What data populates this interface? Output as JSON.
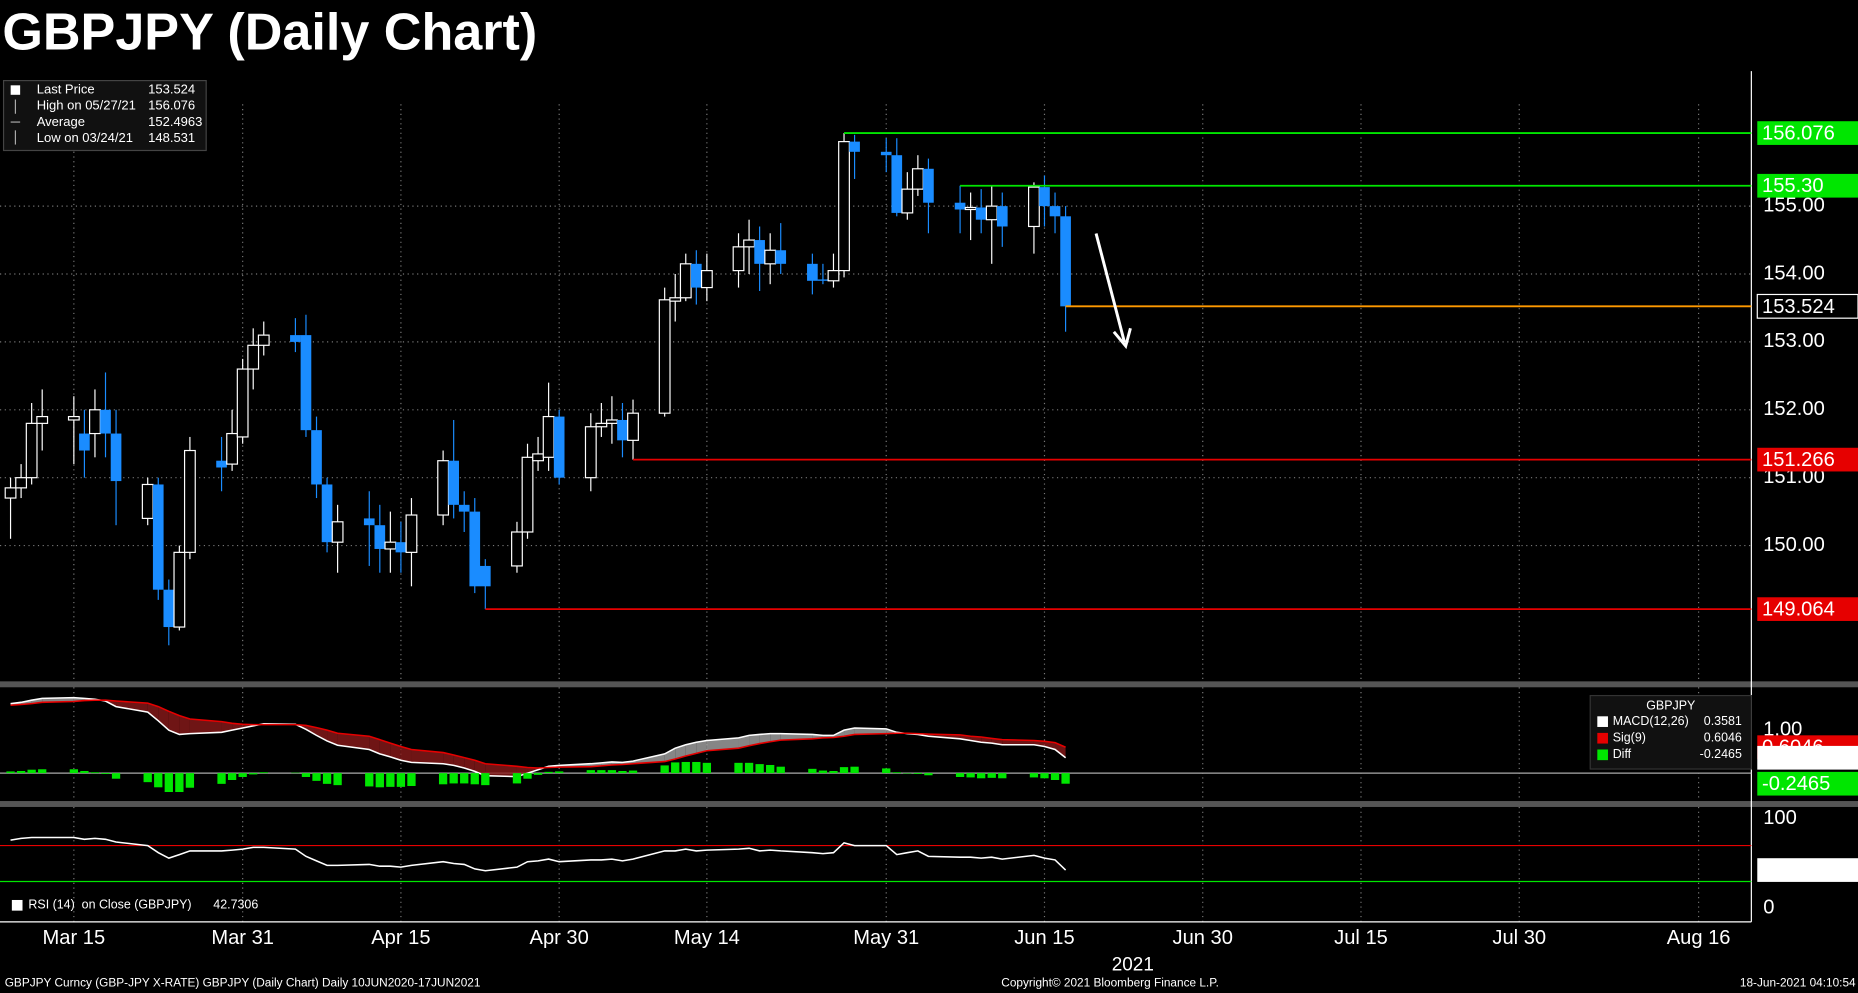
{
  "chart_data": [
    {
      "type": "candlestick",
      "title": "GBPJPY (Daily Chart)",
      "x": [
        "2021-03-09",
        "2021-03-10",
        "2021-03-11",
        "2021-03-12",
        "2021-03-15",
        "2021-03-16",
        "2021-03-17",
        "2021-03-18",
        "2021-03-19",
        "2021-03-22",
        "2021-03-23",
        "2021-03-24",
        "2021-03-25",
        "2021-03-26",
        "2021-03-29",
        "2021-03-30",
        "2021-03-31",
        "2021-04-01",
        "2021-04-02",
        "2021-04-05",
        "2021-04-06",
        "2021-04-07",
        "2021-04-08",
        "2021-04-09",
        "2021-04-12",
        "2021-04-13",
        "2021-04-14",
        "2021-04-15",
        "2021-04-16",
        "2021-04-19",
        "2021-04-20",
        "2021-04-21",
        "2021-04-22",
        "2021-04-23",
        "2021-04-26",
        "2021-04-27",
        "2021-04-28",
        "2021-04-29",
        "2021-04-30",
        "2021-05-03",
        "2021-05-04",
        "2021-05-05",
        "2021-05-06",
        "2021-05-07",
        "2021-05-10",
        "2021-05-11",
        "2021-05-12",
        "2021-05-13",
        "2021-05-14",
        "2021-05-17",
        "2021-05-18",
        "2021-05-19",
        "2021-05-20",
        "2021-05-21",
        "2021-05-24",
        "2021-05-25",
        "2021-05-26",
        "2021-05-27",
        "2021-05-28",
        "2021-05-31",
        "2021-06-01",
        "2021-06-02",
        "2021-06-03",
        "2021-06-04",
        "2021-06-07",
        "2021-06-08",
        "2021-06-09",
        "2021-06-10",
        "2021-06-11",
        "2021-06-14",
        "2021-06-15",
        "2021-06-16",
        "2021-06-17"
      ],
      "open": [
        150.7,
        150.85,
        151.0,
        151.8,
        151.85,
        151.65,
        151.65,
        152.0,
        151.65,
        150.4,
        150.9,
        149.35,
        148.8,
        149.9,
        151.25,
        151.2,
        151.6,
        152.6,
        152.95,
        153.1,
        153.1,
        151.7,
        150.9,
        150.05,
        150.4,
        150.3,
        149.95,
        150.05,
        149.9,
        150.45,
        151.25,
        150.6,
        150.5,
        149.7,
        149.7,
        150.2,
        151.25,
        151.3,
        151.9,
        151.0,
        151.75,
        151.8,
        151.85,
        151.55,
        151.95,
        153.6,
        153.65,
        154.15,
        153.8,
        154.05,
        154.4,
        154.5,
        154.15,
        154.35,
        154.15,
        153.92,
        153.9,
        154.05,
        155.95,
        155.8,
        155.75,
        154.9,
        155.25,
        155.55,
        155.05,
        154.95,
        154.98,
        154.8,
        155.0,
        154.7,
        155.28,
        155.0,
        154.85
      ],
      "high": [
        151.0,
        151.2,
        152.1,
        152.3,
        152.2,
        152.0,
        152.3,
        152.55,
        152.0,
        151.0,
        151.0,
        149.5,
        150.0,
        151.6,
        151.6,
        152.0,
        152.75,
        153.2,
        153.3,
        153.35,
        153.4,
        151.9,
        151.0,
        150.6,
        150.8,
        150.6,
        150.5,
        150.35,
        150.7,
        151.4,
        151.85,
        150.8,
        150.7,
        149.8,
        150.35,
        151.5,
        151.6,
        152.4,
        152.0,
        151.95,
        152.1,
        152.2,
        152.1,
        152.15,
        153.8,
        154.0,
        154.3,
        154.35,
        154.3,
        154.6,
        154.8,
        154.7,
        154.6,
        154.75,
        154.3,
        154.15,
        154.3,
        156.076,
        156.05,
        156.0,
        156.0,
        155.5,
        155.75,
        155.7,
        155.3,
        155.2,
        155.25,
        155.3,
        155.2,
        155.35,
        155.45,
        155.2,
        155.0
      ],
      "low": [
        150.1,
        150.7,
        150.9,
        151.4,
        151.2,
        151.0,
        151.3,
        151.3,
        150.3,
        150.3,
        149.2,
        148.531,
        148.75,
        149.8,
        150.8,
        151.1,
        151.5,
        152.3,
        152.8,
        152.85,
        151.6,
        150.7,
        149.9,
        149.6,
        149.7,
        149.6,
        149.6,
        149.6,
        149.4,
        150.3,
        150.4,
        150.2,
        149.3,
        149.064,
        149.6,
        150.1,
        151.1,
        151.1,
        150.9,
        150.8,
        151.6,
        151.5,
        151.3,
        151.266,
        151.9,
        153.3,
        153.6,
        153.55,
        153.6,
        153.8,
        154.0,
        153.75,
        153.85,
        154.0,
        153.7,
        153.85,
        153.8,
        153.95,
        155.4,
        155.5,
        154.85,
        154.8,
        155.15,
        154.6,
        154.6,
        154.5,
        154.6,
        154.15,
        154.4,
        154.3,
        154.7,
        154.6,
        153.15
      ],
      "close": [
        150.85,
        151.0,
        151.8,
        151.9,
        151.9,
        151.4,
        152.0,
        151.65,
        150.95,
        150.9,
        149.35,
        148.8,
        149.9,
        151.4,
        151.15,
        151.65,
        152.6,
        152.95,
        153.1,
        153.0,
        151.7,
        150.9,
        150.05,
        150.35,
        150.3,
        149.95,
        150.05,
        149.9,
        150.45,
        151.25,
        150.6,
        150.5,
        149.4,
        149.4,
        150.2,
        151.3,
        151.35,
        151.9,
        151.0,
        151.75,
        151.8,
        151.85,
        151.55,
        151.95,
        153.62,
        153.65,
        154.15,
        153.8,
        154.05,
        154.4,
        154.5,
        154.15,
        154.35,
        154.15,
        153.9,
        153.9,
        154.05,
        155.95,
        155.8,
        155.75,
        154.9,
        155.25,
        155.55,
        155.05,
        154.95,
        154.98,
        154.8,
        155.0,
        154.7,
        155.28,
        155.0,
        154.85,
        153.524
      ],
      "up_color": "#ffffff",
      "down_color": "#1a8cff",
      "xlim": [
        "2021-03-08",
        "2021-08-21"
      ],
      "xticks": [
        {
          "value": "2021-03-15",
          "label": "Mar 15"
        },
        {
          "value": "2021-03-31",
          "label": "Mar 31"
        },
        {
          "value": "2021-04-15",
          "label": "Apr 15"
        },
        {
          "value": "2021-04-30",
          "label": "Apr 30"
        },
        {
          "value": "2021-05-14",
          "label": "May 14"
        },
        {
          "value": "2021-05-31",
          "label": "May 31"
        },
        {
          "value": "2021-06-15",
          "label": "Jun 15"
        },
        {
          "value": "2021-06-30",
          "label": "Jun 30"
        },
        {
          "value": "2021-07-15",
          "label": "Jul 15"
        },
        {
          "value": "2021-07-30",
          "label": "Jul 30"
        },
        {
          "value": "2021-08-16",
          "label": "Aug 16"
        }
      ],
      "xlabel": "2021",
      "ylim": [
        148,
        156.5
      ],
      "yticks": [
        {
          "value": 150,
          "label": "150.00"
        },
        {
          "value": 151,
          "label": "151.00"
        },
        {
          "value": 152,
          "label": "152.00"
        },
        {
          "value": 153,
          "label": "153.00"
        },
        {
          "value": 154,
          "label": "154.00"
        },
        {
          "value": 155,
          "label": "155.00"
        }
      ],
      "grid": true,
      "levels": [
        {
          "value": 156.076,
          "color": "#00e600",
          "from": "2021-05-27"
        },
        {
          "value": 155.3,
          "label": "155.30",
          "color": "#00e600",
          "from": "2021-06-07"
        },
        {
          "value": 153.524,
          "color": "#ff9900",
          "tag_color": "#000000",
          "from": "2021-06-17"
        },
        {
          "value": 151.266,
          "color": "#e60000",
          "from": "2021-05-07"
        },
        {
          "value": 149.064,
          "color": "#e60000",
          "from": "2021-04-23"
        }
      ],
      "stats": [
        {
          "label": "Last Price",
          "value": 153.524
        },
        {
          "label": "High on 05/27/21",
          "value": 156.076
        },
        {
          "label": "Average",
          "value": 152.4963
        },
        {
          "label": "Low on 03/24/21",
          "value": 148.531
        }
      ]
    },
    {
      "type": "line",
      "legend_title": "GBPJPY",
      "ylim": [
        -0.65,
        2.0
      ],
      "yticks": [
        {
          "value": 1,
          "label": "1.00"
        }
      ],
      "fill_between": [
        "#a8a8a8",
        "#8b1a1a"
      ],
      "series": [
        {
          "name": "MACD(12,26)",
          "color": "#ffffff",
          "kind": "line",
          "values": [
            1.62,
            1.65,
            1.7,
            1.74,
            1.76,
            1.74,
            1.72,
            1.68,
            1.55,
            1.42,
            1.22,
            1.0,
            0.9,
            0.92,
            0.95,
            1.0,
            1.05,
            1.1,
            1.15,
            1.14,
            1.02,
            0.88,
            0.75,
            0.65,
            0.55,
            0.45,
            0.38,
            0.3,
            0.25,
            0.22,
            0.18,
            0.12,
            0.04,
            -0.06,
            -0.08,
            0.0,
            0.08,
            0.16,
            0.18,
            0.22,
            0.24,
            0.26,
            0.25,
            0.28,
            0.45,
            0.58,
            0.66,
            0.72,
            0.76,
            0.82,
            0.88,
            0.9,
            0.92,
            0.92,
            0.9,
            0.88,
            0.88,
            1.0,
            1.05,
            1.03,
            0.95,
            0.92,
            0.9,
            0.86,
            0.8,
            0.76,
            0.72,
            0.7,
            0.66,
            0.66,
            0.62,
            0.55,
            0.3581
          ]
        },
        {
          "name": "Sig(9)",
          "color": "#e60000",
          "kind": "line",
          "values": [
            1.58,
            1.6,
            1.62,
            1.65,
            1.67,
            1.69,
            1.7,
            1.7,
            1.68,
            1.63,
            1.55,
            1.44,
            1.34,
            1.26,
            1.2,
            1.16,
            1.14,
            1.13,
            1.13,
            1.13,
            1.11,
            1.06,
            1.0,
            0.93,
            0.86,
            0.78,
            0.7,
            0.62,
            0.55,
            0.48,
            0.42,
            0.36,
            0.3,
            0.22,
            0.16,
            0.13,
            0.12,
            0.13,
            0.14,
            0.15,
            0.17,
            0.19,
            0.2,
            0.22,
            0.27,
            0.33,
            0.4,
            0.46,
            0.52,
            0.58,
            0.64,
            0.69,
            0.73,
            0.77,
            0.8,
            0.82,
            0.83,
            0.86,
            0.9,
            0.92,
            0.93,
            0.93,
            0.92,
            0.91,
            0.89,
            0.86,
            0.84,
            0.81,
            0.78,
            0.76,
            0.74,
            0.71,
            0.6046
          ]
        },
        {
          "name": "Diff",
          "color": "#00e600",
          "kind": "bar",
          "values": [
            0.04,
            0.05,
            0.08,
            0.09,
            0.09,
            0.05,
            0.02,
            -0.02,
            -0.13,
            -0.21,
            -0.33,
            -0.44,
            -0.44,
            -0.34,
            -0.25,
            -0.16,
            -0.09,
            -0.03,
            0.02,
            0.01,
            -0.09,
            -0.18,
            -0.25,
            -0.28,
            -0.31,
            -0.33,
            -0.32,
            -0.32,
            -0.3,
            -0.26,
            -0.24,
            -0.24,
            -0.26,
            -0.28,
            -0.24,
            -0.13,
            -0.04,
            0.03,
            0.04,
            0.07,
            0.07,
            0.07,
            0.05,
            0.06,
            0.18,
            0.25,
            0.26,
            0.26,
            0.24,
            0.24,
            0.24,
            0.21,
            0.19,
            0.15,
            0.1,
            0.06,
            0.05,
            0.14,
            0.15,
            0.11,
            0.02,
            -0.01,
            -0.02,
            -0.05,
            -0.09,
            -0.1,
            -0.12,
            -0.11,
            -0.12,
            -0.1,
            -0.12,
            -0.16,
            -0.2465
          ]
        }
      ]
    },
    {
      "type": "line",
      "ylim": [
        -15,
        113
      ],
      "yticks": [
        0,
        100
      ],
      "levels": [
        {
          "value": 70,
          "color": "#e60000"
        },
        {
          "value": 30,
          "color": "#00e600"
        }
      ],
      "series": [
        {
          "name": "RSI (14)  on Close (GBPJPY)",
          "color": "#ffffff",
          "tag_color": "#ffffff",
          "kind": "line",
          "values": [
            76,
            78,
            79,
            79,
            79,
            77,
            78,
            77,
            74,
            70,
            62,
            56,
            60,
            64,
            64,
            65,
            66,
            68,
            68,
            66,
            58,
            53,
            48,
            48,
            49,
            47,
            47,
            46,
            48,
            52,
            50,
            49,
            44,
            42,
            46,
            52,
            53,
            55,
            52,
            54,
            54,
            55,
            53,
            55,
            64,
            64,
            66,
            64,
            65,
            66,
            67,
            64,
            65,
            64,
            62,
            61,
            62,
            73,
            70,
            70,
            60,
            62,
            64,
            58,
            57,
            57,
            56,
            57,
            55,
            59,
            56,
            54,
            42.7306
          ]
        }
      ]
    }
  ],
  "footer": {
    "left": "GBPJPY Curncy (GBP-JPY X-RATE) GBPJPY (Daily Chart)  Daily 10JUN2020-17JUN2021",
    "center": "Copyright© 2021 Bloomberg Finance L.P.",
    "right": "18-Jun-2021 04:10:54"
  }
}
